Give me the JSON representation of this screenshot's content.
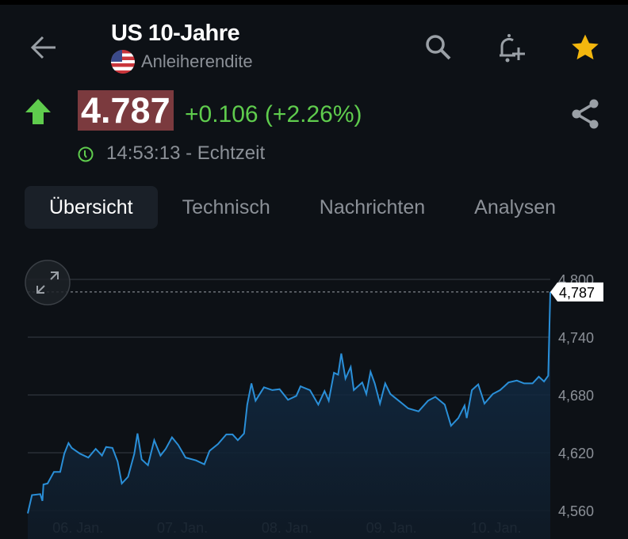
{
  "header": {
    "title": "US 10-Jahre",
    "subtitle": "Anleiherendite",
    "back_icon": "arrow-left-icon",
    "search_icon": "search-icon",
    "alert_icon": "bell-plus-icon",
    "favorite_icon": "star-icon",
    "favorite_color": "#f3b70e"
  },
  "quote": {
    "price": "4.787",
    "change": "+0.106 (+2.26%)",
    "direction": "up",
    "time": "14:53:13 - Echtzeit",
    "up_color": "#5fcc4d",
    "price_bg": "#7b3a3e"
  },
  "tabs": [
    {
      "label": "Übersicht",
      "active": true
    },
    {
      "label": "Technisch"
    },
    {
      "label": "Nachrichten"
    },
    {
      "label": "Analysen"
    }
  ],
  "chart_data": {
    "type": "area",
    "ylim": [
      4560,
      4800
    ],
    "y_ticks": [
      "4,800",
      "4,740",
      "4,680",
      "4,620",
      "4,560"
    ],
    "x_ticks": [
      "06. Jan.",
      "07. Jan.",
      "08. Jan.",
      "09. Jan.",
      "10. Jan."
    ],
    "last_label": "4,787",
    "line_color": "#2a8fd8",
    "points": [
      [
        5.52,
        4557
      ],
      [
        5.56,
        4576
      ],
      [
        5.64,
        4577
      ],
      [
        5.66,
        4570
      ],
      [
        5.67,
        4587
      ],
      [
        5.71,
        4588
      ],
      [
        5.77,
        4600
      ],
      [
        5.83,
        4600
      ],
      [
        5.87,
        4619
      ],
      [
        5.91,
        4630
      ],
      [
        5.94,
        4625
      ],
      [
        6.02,
        4619
      ],
      [
        6.1,
        4615
      ],
      [
        6.17,
        4624
      ],
      [
        6.23,
        4617
      ],
      [
        6.27,
        4626
      ],
      [
        6.33,
        4625
      ],
      [
        6.38,
        4611
      ],
      [
        6.42,
        4588
      ],
      [
        6.48,
        4595
      ],
      [
        6.54,
        4619
      ],
      [
        6.57,
        4640
      ],
      [
        6.61,
        4613
      ],
      [
        6.67,
        4607
      ],
      [
        6.73,
        4633
      ],
      [
        6.79,
        4617
      ],
      [
        6.84,
        4624
      ],
      [
        6.9,
        4636
      ],
      [
        6.96,
        4628
      ],
      [
        7.03,
        4615
      ],
      [
        7.13,
        4612
      ],
      [
        7.21,
        4608
      ],
      [
        7.26,
        4622
      ],
      [
        7.34,
        4629
      ],
      [
        7.42,
        4639
      ],
      [
        7.48,
        4639
      ],
      [
        7.53,
        4633
      ],
      [
        7.59,
        4640
      ],
      [
        7.62,
        4670
      ],
      [
        7.66,
        4692
      ],
      [
        7.7,
        4674
      ],
      [
        7.78,
        4688
      ],
      [
        7.86,
        4685
      ],
      [
        7.93,
        4686
      ],
      [
        8.01,
        4675
      ],
      [
        8.09,
        4679
      ],
      [
        8.13,
        4689
      ],
      [
        8.22,
        4685
      ],
      [
        8.3,
        4670
      ],
      [
        8.36,
        4684
      ],
      [
        8.4,
        4674
      ],
      [
        8.45,
        4703
      ],
      [
        8.49,
        4701
      ],
      [
        8.52,
        4723
      ],
      [
        8.56,
        4697
      ],
      [
        8.61,
        4709
      ],
      [
        8.64,
        4685
      ],
      [
        8.72,
        4693
      ],
      [
        8.76,
        4681
      ],
      [
        8.8,
        4704
      ],
      [
        8.84,
        4692
      ],
      [
        8.89,
        4671
      ],
      [
        8.94,
        4692
      ],
      [
        8.99,
        4681
      ],
      [
        9.07,
        4674
      ],
      [
        9.16,
        4666
      ],
      [
        9.26,
        4663
      ],
      [
        9.35,
        4674
      ],
      [
        9.42,
        4678
      ],
      [
        9.51,
        4670
      ],
      [
        9.57,
        4648
      ],
      [
        9.64,
        4656
      ],
      [
        9.7,
        4669
      ],
      [
        9.72,
        4656
      ],
      [
        9.77,
        4685
      ],
      [
        9.83,
        4691
      ],
      [
        9.89,
        4671
      ],
      [
        9.97,
        4681
      ],
      [
        10.04,
        4685
      ],
      [
        10.12,
        4693
      ],
      [
        10.2,
        4695
      ],
      [
        10.27,
        4692
      ],
      [
        10.35,
        4692
      ],
      [
        10.41,
        4699
      ],
      [
        10.46,
        4694
      ],
      [
        10.5,
        4700
      ],
      [
        10.52,
        4787
      ]
    ],
    "grid": true
  }
}
